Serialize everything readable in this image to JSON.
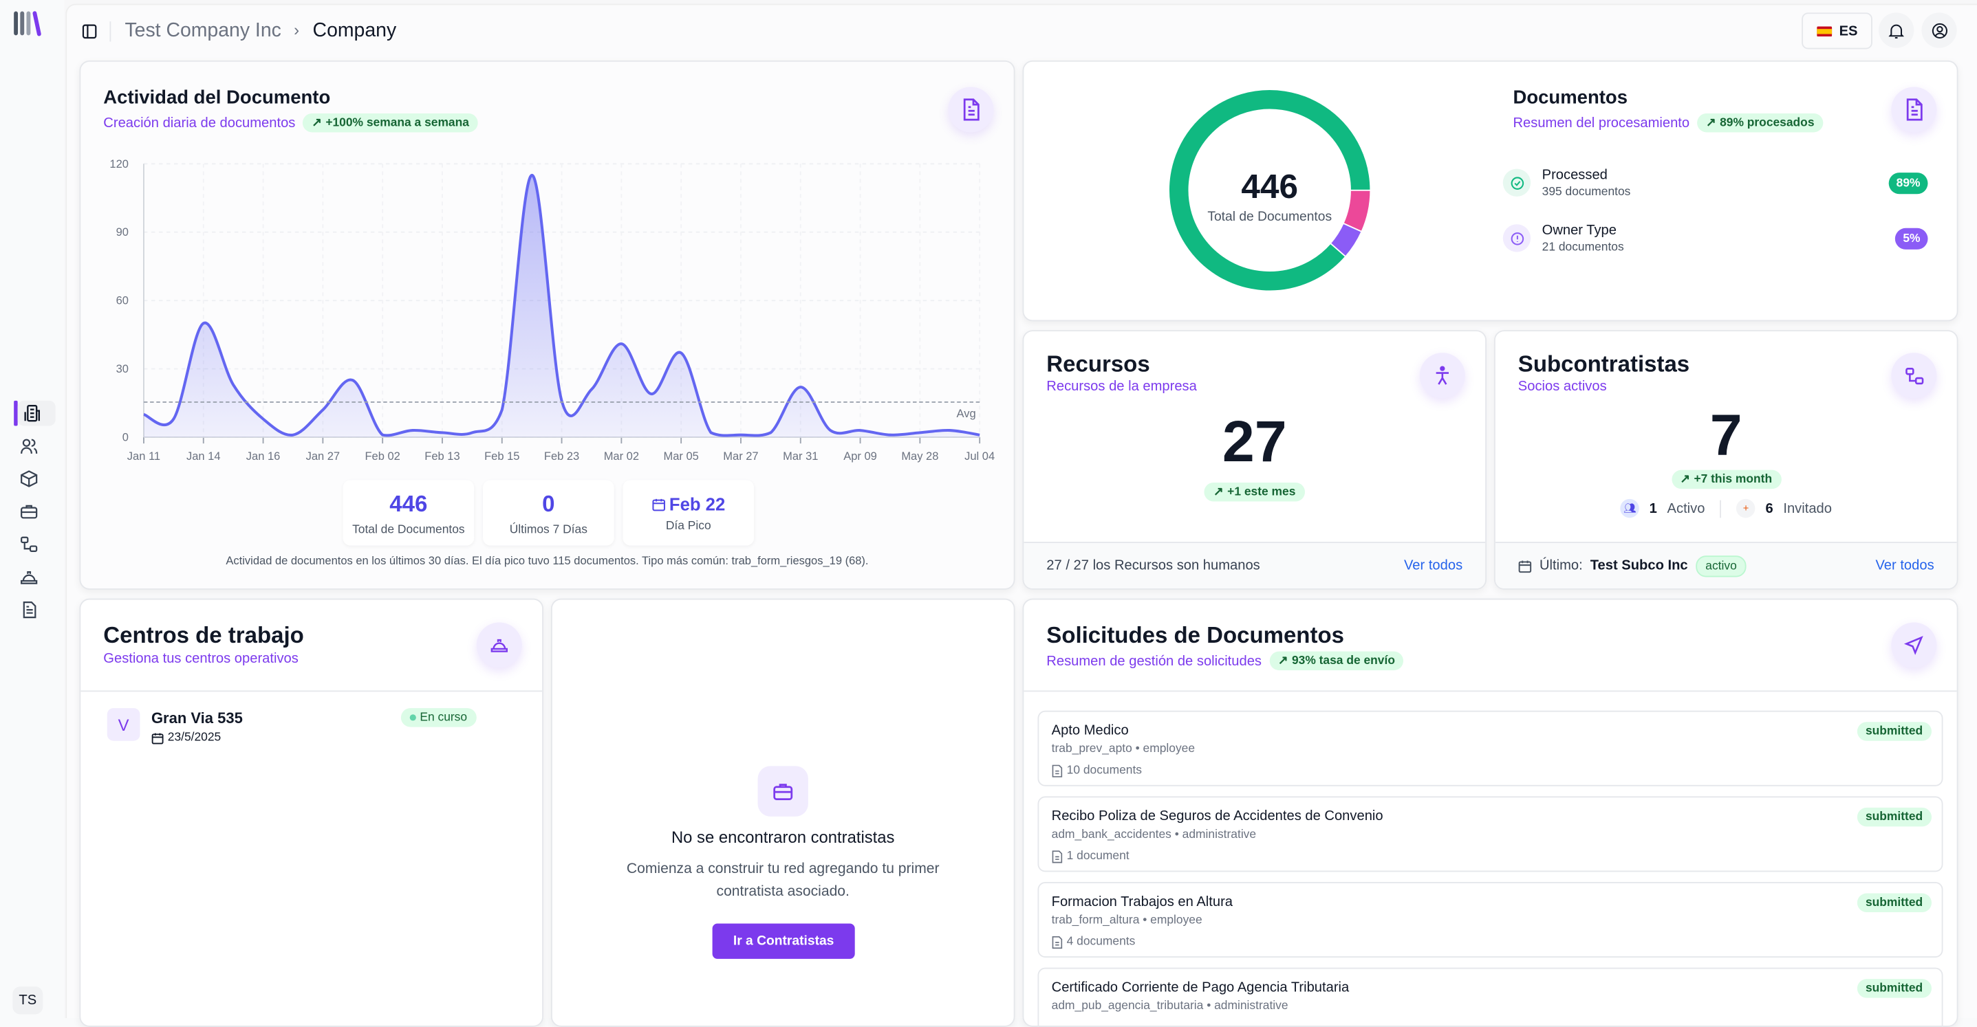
{
  "header": {
    "breadcrumb_parent": "Test Company Inc",
    "breadcrumb_current": "Company",
    "language": "ES"
  },
  "sidebar": {
    "items": [
      "dashboard",
      "users",
      "box",
      "briefcase",
      "subcontractors",
      "helmet",
      "document"
    ],
    "avatar": "TS"
  },
  "activity": {
    "title": "Actividad del Documento",
    "subtitle": "Creación diaria de documentos",
    "badge": "+100% semana a semana",
    "avg_label": "Avg",
    "stats": [
      {
        "value": "446",
        "label": "Total de Documentos"
      },
      {
        "value": "0",
        "label": "Últimos 7 Días"
      },
      {
        "value": "Feb 22",
        "label": "Día Pico"
      }
    ],
    "footnote": "Actividad de documentos en los últimos 30 días. El día pico tuvo 115 documentos. Tipo más común: trab_form_riesgos_19 (68)."
  },
  "documents": {
    "title": "Documentos",
    "subtitle": "Resumen del procesamiento",
    "badge": "89% procesados",
    "total": "446",
    "total_label": "Total de Documentos",
    "rows": [
      {
        "name": "Processed",
        "count": "395 documentos",
        "pct": "89%",
        "color": "#10b981"
      },
      {
        "name": "Owner Type",
        "count": "21 documentos",
        "pct": "5%",
        "color": "#8b5cf6"
      }
    ]
  },
  "resources": {
    "title": "Recursos",
    "subtitle": "Recursos de la empresa",
    "count": "27",
    "badge": "+1 este mes",
    "footer": "27 / 27 los Recursos son humanos",
    "link": "Ver todos"
  },
  "subcontractors": {
    "title": "Subcontratistas",
    "subtitle": "Socios activos",
    "count": "7",
    "badge": "+7 this month",
    "active_count": "1",
    "active_label": "Activo",
    "invited_count": "6",
    "invited_label": "Invitado",
    "last_label": "Último:",
    "last_name": "Test Subco Inc",
    "last_status": "activo",
    "link": "Ver todos"
  },
  "workcenters": {
    "title": "Centros de trabajo",
    "subtitle": "Gestiona tus centros operativos",
    "items": [
      {
        "initial": "V",
        "name": "Gran Via 535",
        "date": "23/5/2025",
        "status": "En curso"
      }
    ]
  },
  "contractors_empty": {
    "title": "No se encontraron contratistas",
    "description": "Comienza a construir tu red agregando tu primer contratista asociado.",
    "button": "Ir a Contratistas"
  },
  "requests": {
    "title": "Solicitudes de Documentos",
    "subtitle": "Resumen de gestión de solicitudes",
    "badge": "93% tasa de envío",
    "items": [
      {
        "title": "Apto Medico",
        "meta": "trab_prev_apto • employee",
        "count": "10 documents",
        "status": "submitted"
      },
      {
        "title": "Recibo Poliza de Seguros de Accidentes de Convenio",
        "meta": "adm_bank_accidentes • administrative",
        "count": "1 document",
        "status": "submitted"
      },
      {
        "title": "Formacion Trabajos en Altura",
        "meta": "trab_form_altura • employee",
        "count": "4 documents",
        "status": "submitted"
      },
      {
        "title": "Certificado Corriente de Pago Agencia Tributaria",
        "meta": "adm_pub_agencia_tributaria • administrative",
        "count": "",
        "status": "submitted"
      }
    ]
  },
  "chart_data": [
    {
      "type": "area",
      "x_tick_labels": [
        "Jan 11",
        "Jan 14",
        "Jan 16",
        "Jan 27",
        "Feb 02",
        "Feb 13",
        "Feb 15",
        "Feb 23",
        "Mar 02",
        "Mar 05",
        "Mar 27",
        "Mar 31",
        "Apr 09",
        "May 28",
        "Jul 04"
      ],
      "values": [
        10,
        8,
        50,
        23,
        8,
        1,
        12,
        25,
        1,
        3,
        2,
        2,
        12,
        115,
        16,
        21,
        41,
        19,
        37,
        2,
        1,
        2,
        22,
        3,
        3,
        1,
        2,
        3,
        1
      ],
      "y_ticks": [
        0,
        30,
        60,
        90,
        120
      ],
      "ylim": [
        0,
        120
      ],
      "average": 15.4,
      "grid": true,
      "color": "#6366f1"
    },
    {
      "type": "pie",
      "donut": true,
      "slices": [
        {
          "name": "Processed",
          "value": 395,
          "color": "#10b981"
        },
        {
          "name": "",
          "value": 30,
          "color": "#ec4899"
        },
        {
          "name": "Owner Type",
          "value": 21,
          "color": "#8b5cf6"
        }
      ]
    }
  ]
}
